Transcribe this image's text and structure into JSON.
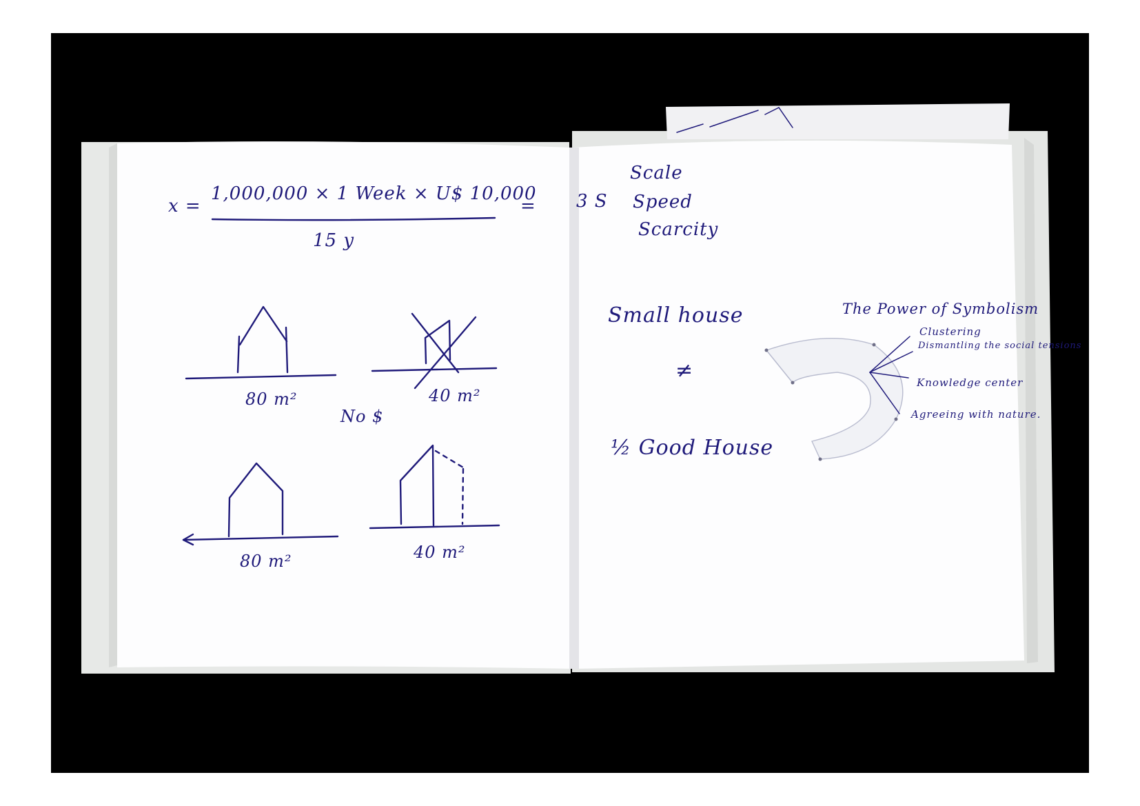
{
  "left_page": {
    "equation_lhs": "x =",
    "numerator": "1,000,000 × 1 Week × U$ 10,000",
    "equals_sign": "=",
    "denominator": "15 y",
    "house_a_area": "80 m²",
    "house_b_area": "40 m²",
    "no_money_note": "No $",
    "house_c_area": "80 m²",
    "house_d_area": "40 m²"
  },
  "right_page": {
    "three_s": "3 S",
    "s_list": [
      "Scale",
      "Speed",
      "Scarcity"
    ],
    "small_house": "Small house",
    "not_equal": "≠",
    "half_good_house": "½ Good House",
    "annotation_title": "The Power of Symbolism",
    "annotations": [
      "Clustering",
      "Dismantling the social tensions",
      "Knowledge center",
      "Agreeing with nature."
    ]
  },
  "colors": {
    "ink": "#1f1a7a",
    "paper": "#fdfdfe",
    "background": "#000000"
  }
}
